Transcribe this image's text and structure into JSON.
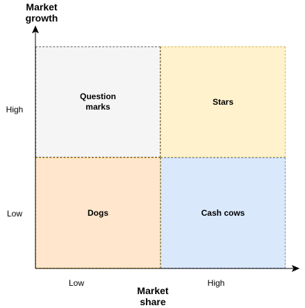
{
  "y_axis": {
    "title": "Market\ngrowth",
    "ticks": [
      "High",
      "Low"
    ]
  },
  "x_axis": {
    "title": "Market\nshare",
    "ticks": [
      "Low",
      "High"
    ]
  },
  "quadrants": {
    "question_marks": {
      "label": "Question\nmarks",
      "fill": "#f5f5f5",
      "stroke": "#666666"
    },
    "stars": {
      "label": "Stars",
      "fill": "#fff2cc",
      "stroke": "#d6b656"
    },
    "dogs": {
      "label": "Dogs",
      "fill": "#ffe6cc",
      "stroke": "#d79b00"
    },
    "cash_cows": {
      "label": "Cash cows",
      "fill": "#dae8fc",
      "stroke": "#6c8ebf"
    }
  },
  "colors": {
    "axis": "#000000"
  }
}
